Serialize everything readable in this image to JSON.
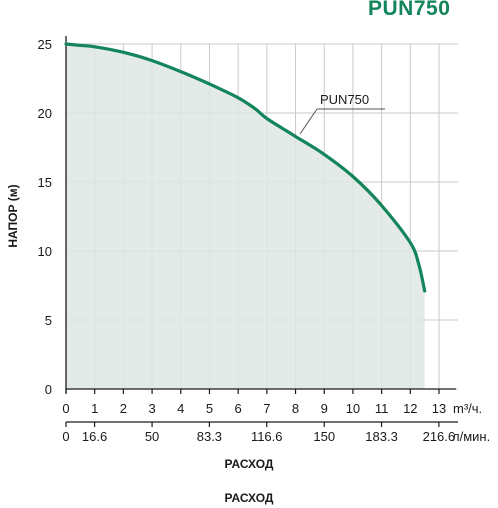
{
  "colors": {
    "curve": "#12855a",
    "fill": "#dfe6e3",
    "grid": "#c9c9c9",
    "axis": "#1a1a1a",
    "title": "#12855a"
  },
  "chart_data": {
    "type": "area",
    "title": "PUN750",
    "ylabel": "НАПОР (м)",
    "xlabel": "РАСХОД",
    "xlabel_repeat": "РАСХОД",
    "series": [
      {
        "name": "PUN750",
        "x": [
          0,
          0.5,
          1,
          2,
          3,
          4,
          5,
          6,
          6.6,
          7,
          8,
          9,
          10,
          11,
          12,
          12.3,
          12.5
        ],
        "y": [
          25,
          24.9,
          24.8,
          24.4,
          23.8,
          23.0,
          22.1,
          21.1,
          20.3,
          19.6,
          18.3,
          17.0,
          15.4,
          13.3,
          10.6,
          9.0,
          7.1
        ]
      }
    ],
    "xlim": [
      0,
      13
    ],
    "ylim": [
      0,
      25
    ],
    "y_ticks": [
      "0",
      "5",
      "10",
      "15",
      "20",
      "25"
    ],
    "x_ticks": [
      "0",
      "1",
      "2",
      "3",
      "4",
      "5",
      "6",
      "7",
      "8",
      "9",
      "10",
      "11",
      "12",
      "13"
    ],
    "x_unit": "m³/ч.",
    "x2_ticks": [
      "0",
      "16.6",
      "50",
      "83.3",
      "116.6",
      "150",
      "183.3",
      "216.6"
    ],
    "x2_unit": "л/мин.",
    "grid": true,
    "annotation": "PUN750"
  }
}
